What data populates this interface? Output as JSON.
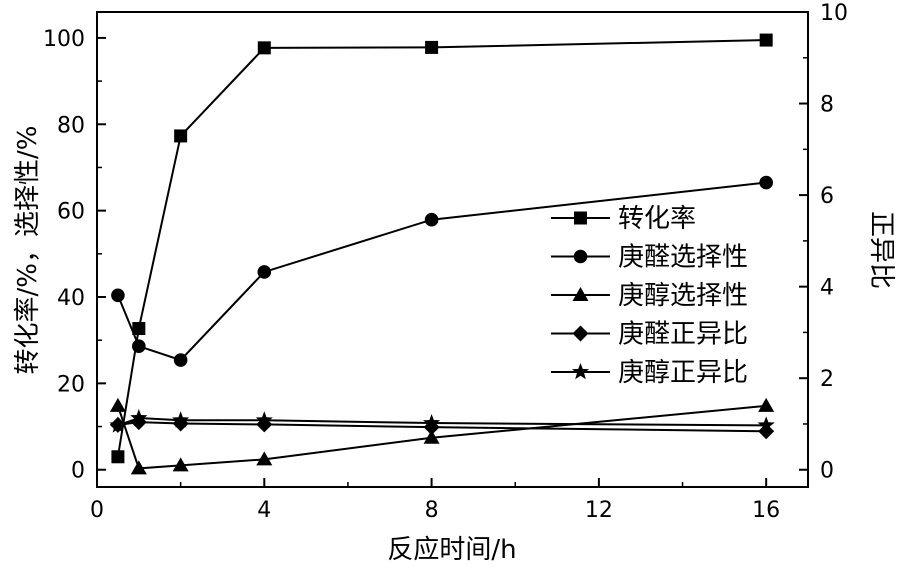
{
  "chart_data": {
    "type": "line",
    "xlabel": "反应时间/h",
    "ylabel_left": "转化率/%，选择性/%",
    "ylabel_right": "正异比",
    "xlim": [
      0,
      17
    ],
    "ylim_left": [
      -4,
      106
    ],
    "ylim_right": [
      -0.377,
      10
    ],
    "x_ticks": [
      0,
      4,
      8,
      12,
      16
    ],
    "x_tick_labels": [
      "0",
      "4",
      "8",
      "12",
      "16"
    ],
    "y_left_ticks": [
      0,
      20,
      40,
      60,
      80,
      100
    ],
    "y_left_tick_labels": [
      "0",
      "20",
      "40",
      "60",
      "80",
      "100"
    ],
    "y_right_ticks": [
      0,
      2,
      4,
      6,
      8,
      10
    ],
    "y_right_tick_labels": [
      "0",
      "2",
      "4",
      "6",
      "8",
      "10"
    ],
    "x": [
      0.5,
      1,
      2,
      4,
      8,
      16
    ],
    "grid": false,
    "legend_position": "right-middle",
    "series": [
      {
        "name": "转化率",
        "axis": "left",
        "marker": "square",
        "values": [
          3,
          32.7,
          77.3,
          97.7,
          97.8,
          99.5
        ]
      },
      {
        "name": "庚醛选择性",
        "axis": "left",
        "marker": "circle",
        "values": [
          40.4,
          28.6,
          25.4,
          45.8,
          57.9,
          66.5
        ]
      },
      {
        "name": "庚醇选择性",
        "axis": "left",
        "marker": "triangle",
        "values": [
          14.8,
          0.3,
          1,
          2.4,
          7.4,
          14.8
        ]
      },
      {
        "name": "庚醛正异比",
        "axis": "right",
        "marker": "diamond",
        "values": [
          0.98,
          1.04,
          1.01,
          0.99,
          0.93,
          0.84
        ]
      },
      {
        "name": "庚醇正异比",
        "axis": "right",
        "marker": "star",
        "values": [
          0.97,
          1.13,
          1.08,
          1.08,
          1.02,
          0.97
        ]
      }
    ],
    "colors": {
      "line": "#000000",
      "marker": "#000000",
      "axis": "#000000",
      "background": "#ffffff"
    }
  }
}
